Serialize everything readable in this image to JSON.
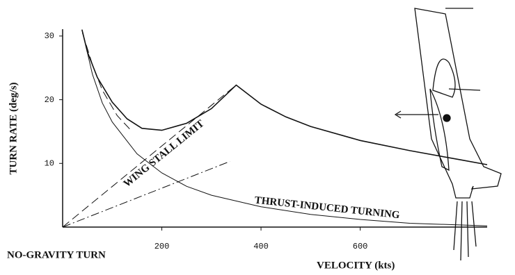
{
  "chart_data": {
    "type": "line",
    "y_label": "TURN RATE (deg/s)",
    "x_label": "VELOCITY (kts)",
    "annotations": [
      "NO-GRAVITY TURN",
      "WING STALL LIMIT",
      "THRUST-INDUCED TURNING"
    ],
    "xlim": [
      0,
      856
    ],
    "ylim": [
      0,
      31
    ],
    "xticks": [
      200,
      400,
      600
    ],
    "yticks": [
      10,
      20,
      30
    ],
    "series": [
      {
        "color": "#111",
        "style": "solid",
        "width": 1.6,
        "x": [
          39,
          50,
          70,
          100,
          130,
          160,
          200,
          250,
          300,
          350,
          400,
          450,
          500,
          600,
          700,
          800,
          856
        ],
        "values": [
          31,
          27.5,
          23.5,
          19.6,
          17,
          15.5,
          15.2,
          16.3,
          18.6,
          22.3,
          19.3,
          17.3,
          15.8,
          13.6,
          12,
          10.6,
          9.8
        ]
      },
      {
        "color": "#111",
        "style": "solid",
        "width": 1,
        "x": [
          39,
          60,
          80,
          100,
          150,
          200,
          250,
          300,
          400,
          500,
          600,
          700,
          856
        ],
        "values": [
          31,
          24,
          19.5,
          16.5,
          11.5,
          8.5,
          6.4,
          5,
          3.2,
          2,
          1.2,
          0.6,
          0.2
        ]
      },
      {
        "color": "#111",
        "style": "dashed",
        "width": 1,
        "x": [
          40,
          60,
          80,
          110,
          140
        ],
        "values": [
          30.5,
          25.5,
          21.5,
          17.5,
          15
        ]
      },
      {
        "color": "#111",
        "style": "dashed",
        "width": 1,
        "x": [
          0,
          350
        ],
        "values": [
          0,
          22.3
        ]
      },
      {
        "color": "#111",
        "style": "dashdot",
        "width": 1,
        "x": [
          0,
          337
        ],
        "values": [
          0,
          10.3
        ]
      }
    ]
  }
}
